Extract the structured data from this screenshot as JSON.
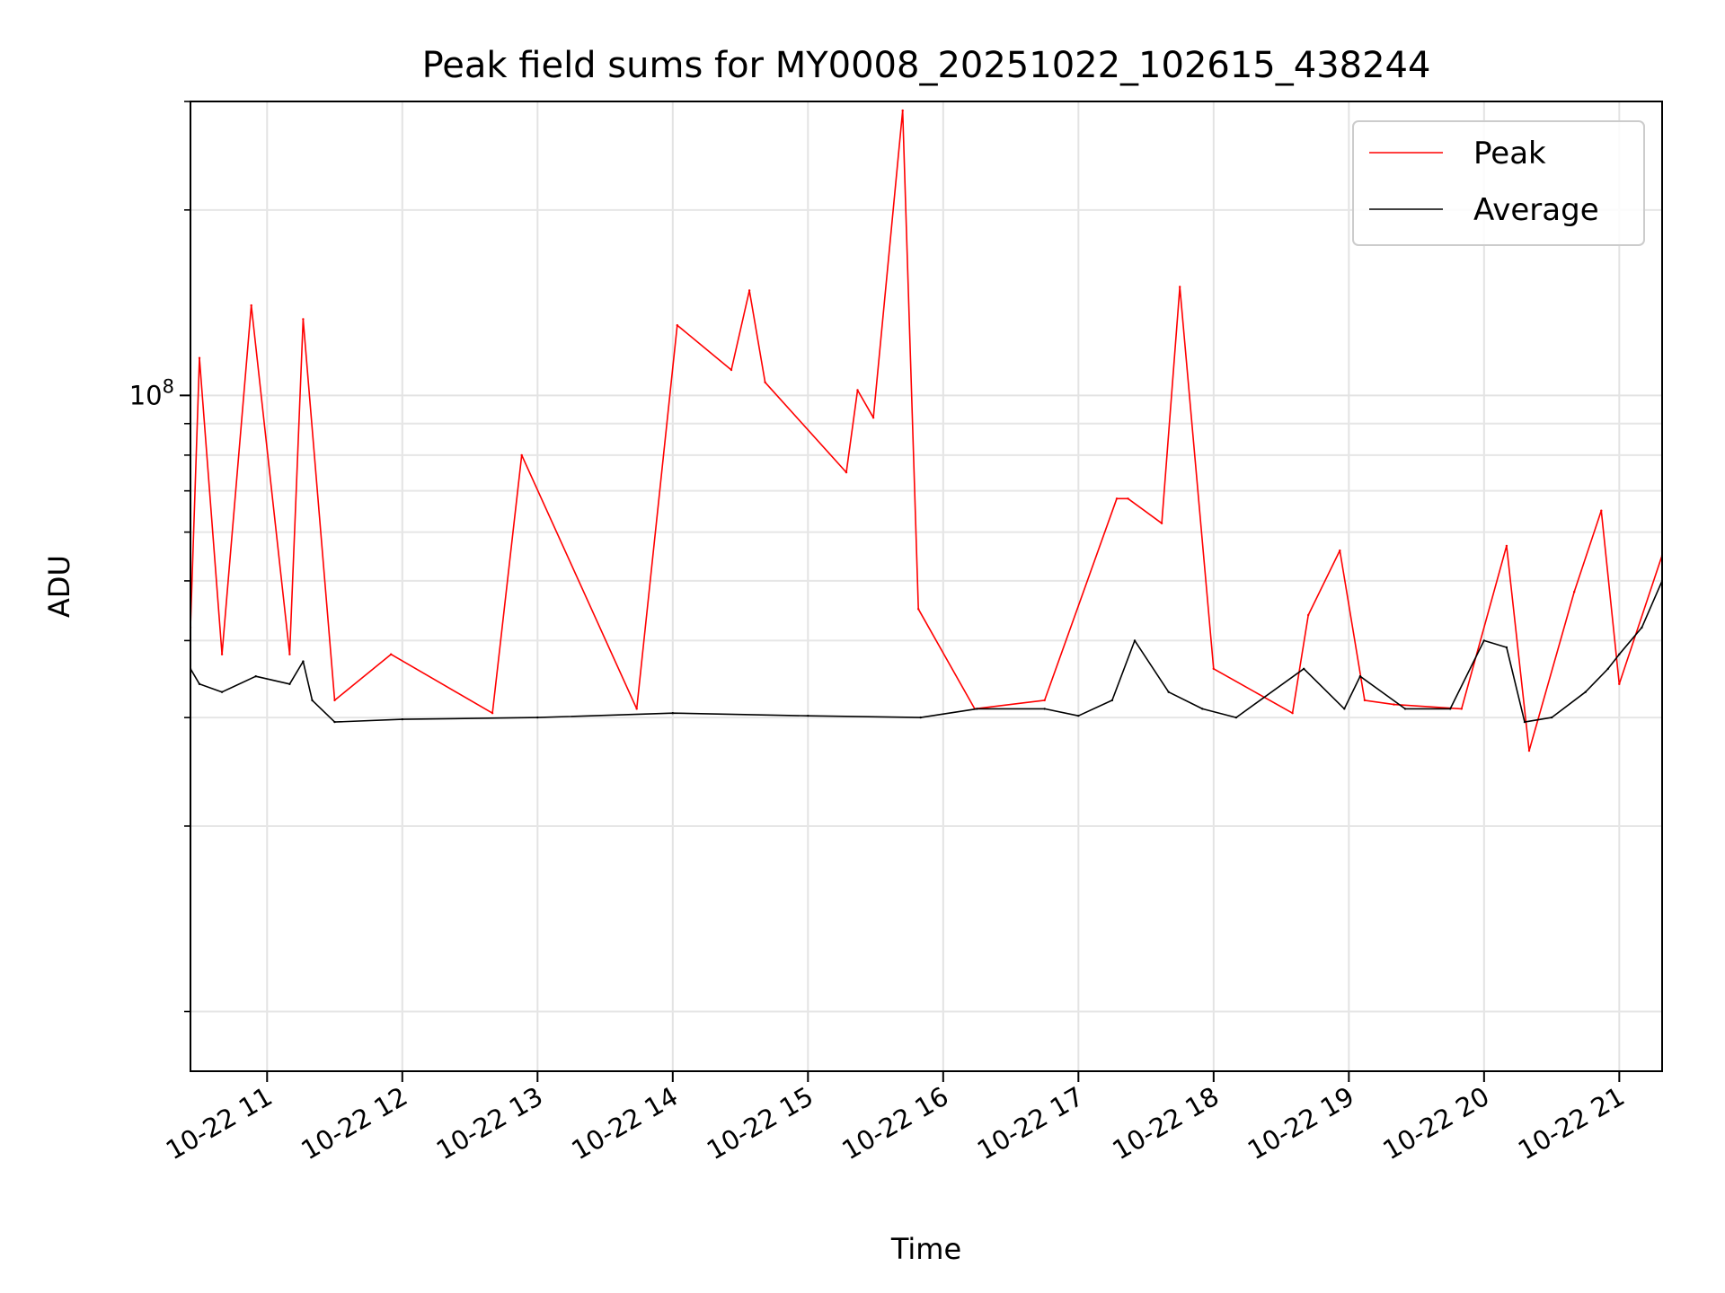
{
  "chart_data": {
    "type": "line",
    "title": "Peak field sums for MY0008_20251022_102615_438244",
    "xlabel": "Time",
    "ylabel": "ADU",
    "y_scale": "log",
    "ylim": [
      8000000,
      300000000
    ],
    "yticks": [
      {
        "value": 100000000,
        "base": "10",
        "exp": "8"
      }
    ],
    "xlim": [
      "2025-10-22T10:26",
      "2025-10-22T21:19"
    ],
    "x_tick_labels": [
      "10-22 11",
      "10-22 12",
      "10-22 13",
      "10-22 14",
      "10-22 15",
      "10-22 16",
      "10-22 17",
      "10-22 18",
      "10-22 19",
      "10-22 20",
      "10-22 21"
    ],
    "x_tick_times": [
      "2025-10-22T11:00",
      "2025-10-22T12:00",
      "2025-10-22T13:00",
      "2025-10-22T14:00",
      "2025-10-22T15:00",
      "2025-10-22T16:00",
      "2025-10-22T17:00",
      "2025-10-22T18:00",
      "2025-10-22T19:00",
      "2025-10-22T20:00",
      "2025-10-22T21:00"
    ],
    "grid": true,
    "legend_position": "top-right",
    "series": [
      {
        "name": "Peak",
        "color": "#ff0000",
        "x": [
          "2025-10-22T10:26",
          "2025-10-22T10:30",
          "2025-10-22T10:40",
          "2025-10-22T10:53",
          "2025-10-22T11:10",
          "2025-10-22T11:16",
          "2025-10-22T11:30",
          "2025-10-22T11:55",
          "2025-10-22T12:40",
          "2025-10-22T12:53",
          "2025-10-22T13:44",
          "2025-10-22T14:02",
          "2025-10-22T14:26",
          "2025-10-22T14:34",
          "2025-10-22T14:41",
          "2025-10-22T15:17",
          "2025-10-22T15:22",
          "2025-10-22T15:29",
          "2025-10-22T15:42",
          "2025-10-22T15:49",
          "2025-10-22T16:14",
          "2025-10-22T16:45",
          "2025-10-22T17:17",
          "2025-10-22T17:22",
          "2025-10-22T17:37",
          "2025-10-22T17:45",
          "2025-10-22T18:00",
          "2025-10-22T18:35",
          "2025-10-22T18:42",
          "2025-10-22T18:56",
          "2025-10-22T19:07",
          "2025-10-22T19:20",
          "2025-10-22T19:50",
          "2025-10-22T20:10",
          "2025-10-22T20:20",
          "2025-10-22T20:40",
          "2025-10-22T20:52",
          "2025-10-22T21:00",
          "2025-10-22T21:19"
        ],
        "y": [
          42000000,
          115000000,
          38000000,
          140000000,
          38000000,
          133000000,
          32000000,
          38000000,
          30500000,
          80000000,
          31000000,
          130000000,
          110000000,
          148000000,
          105000000,
          75000000,
          102000000,
          92000000,
          290000000,
          45000000,
          31000000,
          32000000,
          68000000,
          68000000,
          62000000,
          150000000,
          36000000,
          30500000,
          44000000,
          56000000,
          32000000,
          31500000,
          31000000,
          57000000,
          26500000,
          48000000,
          65000000,
          34000000,
          55000000
        ]
      },
      {
        "name": "Average",
        "color": "#000000",
        "x": [
          "2025-10-22T10:26",
          "2025-10-22T10:30",
          "2025-10-22T10:40",
          "2025-10-22T10:55",
          "2025-10-22T11:10",
          "2025-10-22T11:16",
          "2025-10-22T11:20",
          "2025-10-22T11:30",
          "2025-10-22T12:00",
          "2025-10-22T13:00",
          "2025-10-22T14:00",
          "2025-10-22T15:00",
          "2025-10-22T15:50",
          "2025-10-22T16:15",
          "2025-10-22T16:45",
          "2025-10-22T17:00",
          "2025-10-22T17:15",
          "2025-10-22T17:25",
          "2025-10-22T17:40",
          "2025-10-22T17:55",
          "2025-10-22T18:10",
          "2025-10-22T18:40",
          "2025-10-22T18:58",
          "2025-10-22T19:05",
          "2025-10-22T19:25",
          "2025-10-22T19:45",
          "2025-10-22T20:00",
          "2025-10-22T20:10",
          "2025-10-22T20:18",
          "2025-10-22T20:30",
          "2025-10-22T20:45",
          "2025-10-22T20:55",
          "2025-10-22T21:00",
          "2025-10-22T21:10",
          "2025-10-22T21:19"
        ],
        "y": [
          36000000,
          34000000,
          33000000,
          35000000,
          34000000,
          37000000,
          32000000,
          29500000,
          29800000,
          30000000,
          30500000,
          30200000,
          30000000,
          31000000,
          31000000,
          30200000,
          32000000,
          40000000,
          33000000,
          31000000,
          30000000,
          36000000,
          31000000,
          35000000,
          31000000,
          31000000,
          40000000,
          39000000,
          29500000,
          30000000,
          33000000,
          36000000,
          38000000,
          42000000,
          50000000
        ]
      }
    ]
  }
}
